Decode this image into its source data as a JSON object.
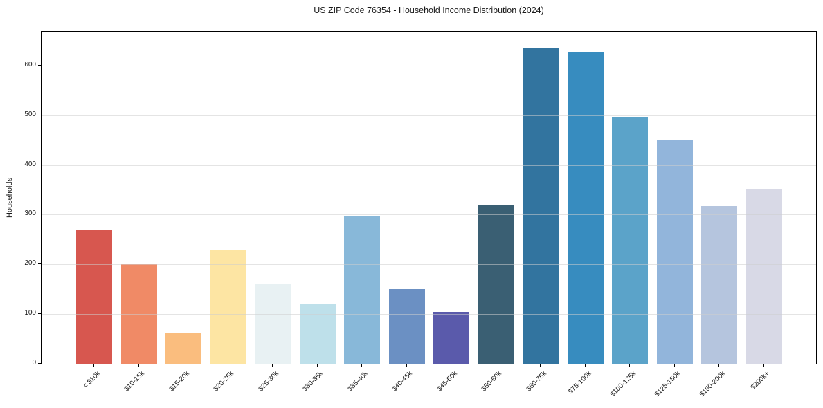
{
  "chart_data": {
    "type": "bar",
    "title": "US ZIP Code 76354 - Household Income Distribution (2024)",
    "xlabel": "",
    "ylabel": "Households",
    "categories": [
      "< $10k",
      "$10-15k",
      "$15-20k",
      "$20-25k",
      "$25-30k",
      "$30-35k",
      "$35-40k",
      "$40-45k",
      "$45-50k",
      "$50-60k",
      "$60-75k",
      "$75-100k",
      "$100-125k",
      "$125-150k",
      "$150-200k",
      "$200k+"
    ],
    "values": [
      269,
      200,
      61,
      228,
      162,
      120,
      296,
      150,
      104,
      320,
      635,
      627,
      497,
      450,
      317,
      351
    ],
    "bar_colors": [
      "#d7574f",
      "#f08a66",
      "#fabd7e",
      "#fde5a3",
      "#e8f1f3",
      "#bee0ea",
      "#88b8d9",
      "#6b90c3",
      "#5a5aab",
      "#3a5f73",
      "#32749f",
      "#378cbf",
      "#5ba3c9",
      "#92b5db",
      "#b5c5de",
      "#d8d9e6"
    ],
    "yticks": [
      0,
      100,
      200,
      300,
      400,
      500,
      600
    ],
    "ylim": [
      0,
      668
    ],
    "grid": "horizontal, light gray, drawn over bars",
    "legend": "none",
    "plot_background": "#ffffff",
    "spine_color": "#000000"
  }
}
